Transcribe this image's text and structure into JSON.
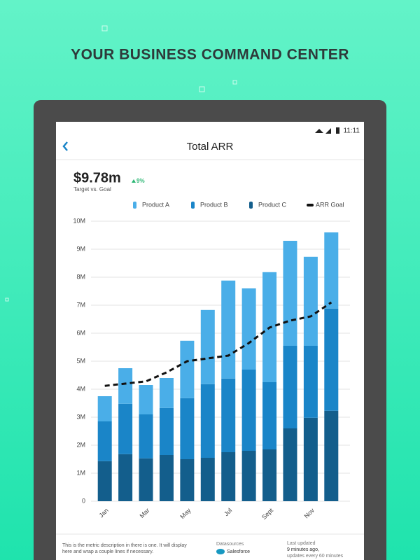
{
  "header": {
    "title": "YOUR BUSINESS COMMAND CENTER"
  },
  "status_bar": {
    "time": "11:11"
  },
  "screen": {
    "title": "Total ARR",
    "metric": "$9.78m",
    "change": "9%",
    "metric_caption": "Target vs. Goal",
    "description": "This is the metric description in there is one. It will display here and wrap a couple lines if necessary.",
    "datasources_label": "Datasources",
    "datasource": "Salesforce",
    "updated_label": "Last updated",
    "updated_value": "9 minutes ago,",
    "updated_note": "updates every 60 minutes"
  },
  "chart_data": {
    "type": "bar",
    "stacked": true,
    "grid": true,
    "categories": [
      "Jan",
      null,
      "Mar",
      null,
      "May",
      null,
      "Jul",
      null,
      "Sept",
      null,
      "Nov",
      null
    ],
    "ylim": [
      0,
      10
    ],
    "yticks": [
      0,
      {
        "value": 1,
        "label": "1M"
      },
      {
        "value": 2,
        "label": "2M"
      },
      {
        "value": 3,
        "label": "3M"
      },
      {
        "value": 4,
        "label": "4M"
      },
      {
        "value": 5,
        "label": "5M"
      },
      {
        "value": 6,
        "label": "6M"
      },
      {
        "value": 7,
        "label": "7M"
      },
      {
        "value": 8,
        "label": "8M"
      },
      {
        "value": 9,
        "label": "9M"
      },
      {
        "value": 10,
        "label": "10M"
      }
    ],
    "series": [
      {
        "name": "Product C",
        "type": "bar",
        "color": "#135e8c",
        "values": [
          1.43,
          1.68,
          1.53,
          1.65,
          1.5,
          1.55,
          1.75,
          1.8,
          1.85,
          2.6,
          2.98,
          3.23
        ]
      },
      {
        "name": "Product B",
        "type": "bar",
        "color": "#1a85c8",
        "values": [
          1.42,
          1.8,
          1.57,
          1.68,
          2.18,
          2.63,
          2.63,
          2.9,
          2.4,
          2.95,
          2.57,
          3.65
        ]
      },
      {
        "name": "Product A",
        "type": "bar",
        "color": "#4aaee8",
        "values": [
          0.9,
          1.27,
          1.05,
          1.07,
          2.05,
          2.65,
          3.5,
          2.9,
          3.93,
          3.75,
          3.18,
          2.72
        ]
      },
      {
        "name": "ARR Goal",
        "type": "line",
        "dashed": true,
        "color": "#111111",
        "values": [
          4.12,
          4.2,
          4.28,
          4.6,
          5.0,
          5.1,
          5.2,
          5.65,
          6.2,
          6.45,
          6.6,
          7.1
        ]
      }
    ],
    "legend_order": [
      2,
      1,
      0,
      3
    ]
  }
}
